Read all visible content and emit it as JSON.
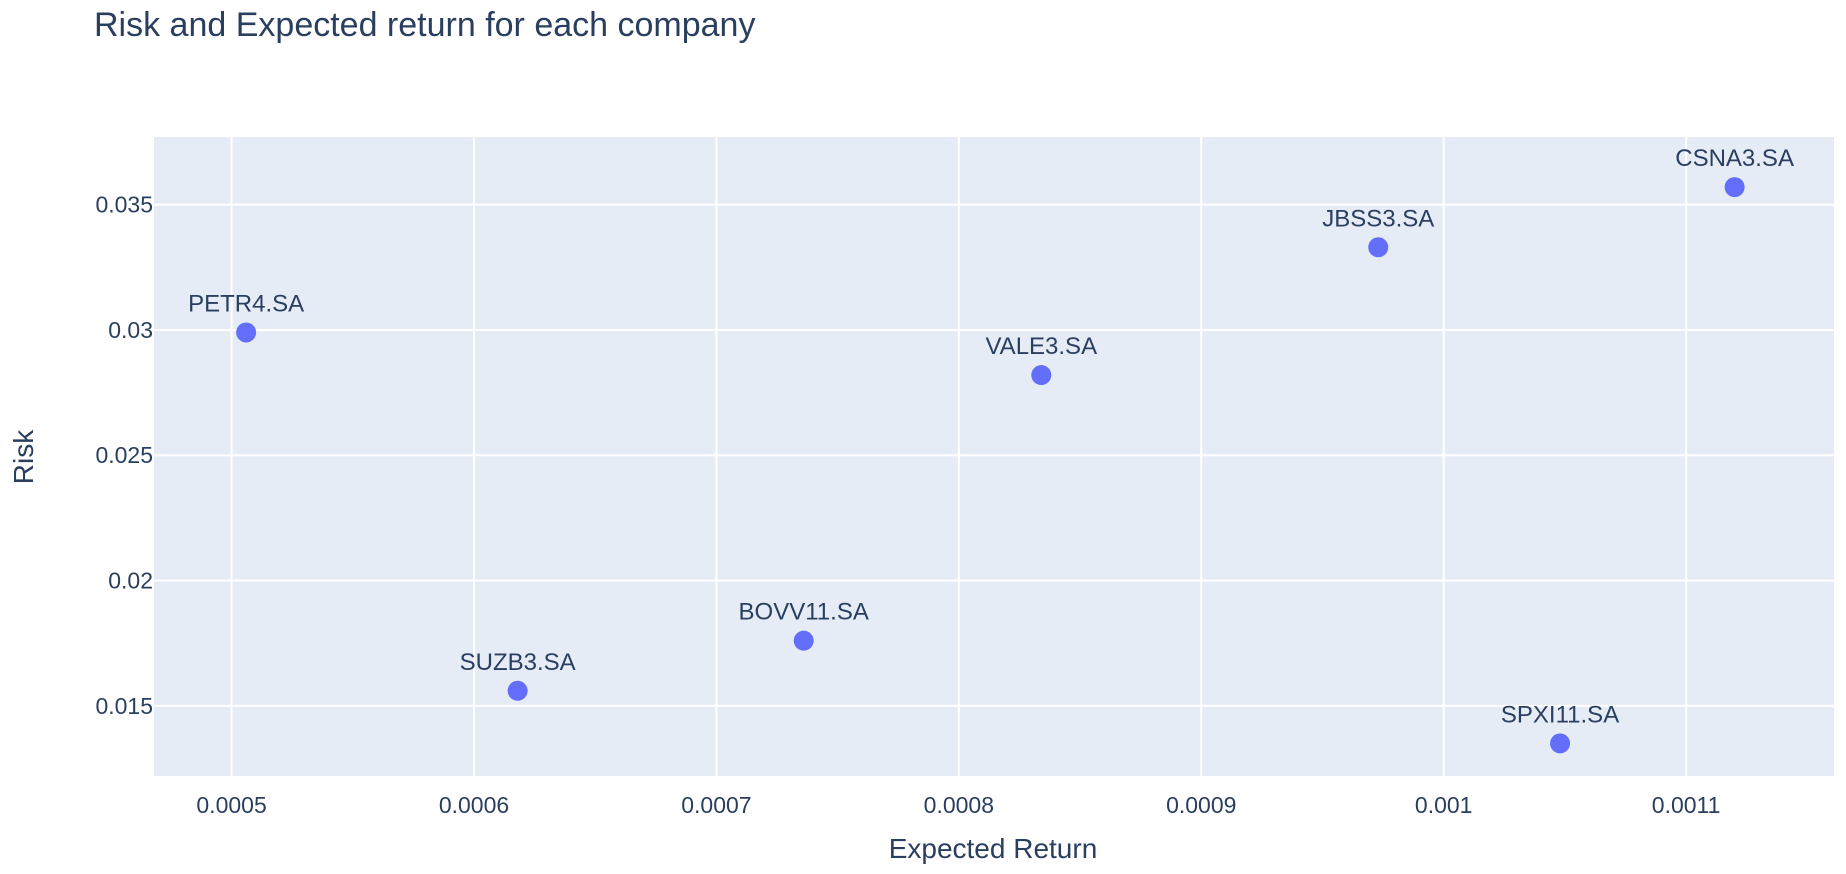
{
  "chart_data": {
    "type": "scatter",
    "title": "Risk and Expected return for each company",
    "xlabel": "Expected Return",
    "ylabel": "Risk",
    "xlim": [
      0.000468,
      0.001161
    ],
    "ylim": [
      0.0122,
      0.0377
    ],
    "x_ticks": [
      0.0005,
      0.0006,
      0.0007,
      0.0008,
      0.0009,
      0.001,
      0.0011
    ],
    "x_tick_labels": [
      "0.0005",
      "0.0006",
      "0.0007",
      "0.0008",
      "0.0009",
      "0.001",
      "0.0011"
    ],
    "y_ticks": [
      0.015,
      0.02,
      0.025,
      0.03,
      0.035
    ],
    "y_tick_labels": [
      "0.015",
      "0.02",
      "0.025",
      "0.03",
      "0.035"
    ],
    "grid": true,
    "legend": "none",
    "colors": {
      "marker": "#636efa",
      "plot_bg": "#e5ecf6",
      "grid": "#ffffff",
      "text": "#2a3f5f"
    },
    "points": [
      {
        "label": "PETR4.SA",
        "x": 0.000506,
        "y": 0.0299
      },
      {
        "label": "SUZB3.SA",
        "x": 0.000618,
        "y": 0.0156
      },
      {
        "label": "BOVV11.SA",
        "x": 0.000736,
        "y": 0.0176
      },
      {
        "label": "VALE3.SA",
        "x": 0.000834,
        "y": 0.0282
      },
      {
        "label": "JBSS3.SA",
        "x": 0.000973,
        "y": 0.0333
      },
      {
        "label": "SPXI11.SA",
        "x": 0.001048,
        "y": 0.0135
      },
      {
        "label": "CSNA3.SA",
        "x": 0.00112,
        "y": 0.0357
      }
    ]
  }
}
